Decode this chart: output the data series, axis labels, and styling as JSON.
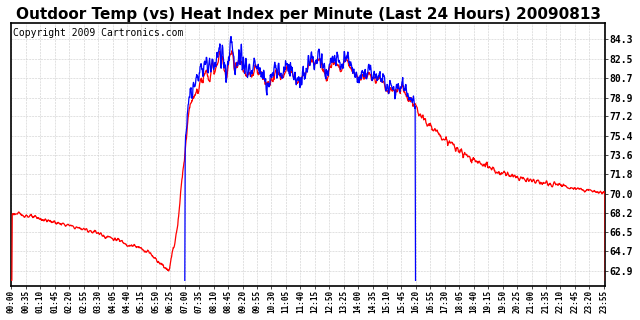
{
  "title": "Outdoor Temp (vs) Heat Index per Minute (Last 24 Hours) 20090813",
  "copyright": "Copyright 2009 Cartronics.com",
  "yticks": [
    62.9,
    64.7,
    66.5,
    68.2,
    70.0,
    71.8,
    73.6,
    75.4,
    77.2,
    78.9,
    80.7,
    82.5,
    84.3
  ],
  "ylim": [
    61.5,
    85.8
  ],
  "xlim": [
    0,
    1439
  ],
  "xtick_minutes": [
    0,
    35,
    70,
    105,
    140,
    175,
    210,
    245,
    280,
    315,
    350,
    385,
    420,
    455,
    490,
    525,
    560,
    595,
    630,
    665,
    700,
    735,
    770,
    805,
    840,
    875,
    910,
    945,
    980,
    1015,
    1050,
    1085,
    1120,
    1155,
    1190,
    1225,
    1260,
    1295,
    1330,
    1365,
    1400,
    1435
  ],
  "xtick_labels": [
    "00:00",
    "00:35",
    "01:10",
    "01:45",
    "02:20",
    "02:55",
    "03:30",
    "04:05",
    "04:40",
    "05:15",
    "05:50",
    "06:25",
    "07:00",
    "07:35",
    "08:10",
    "08:45",
    "09:20",
    "09:55",
    "10:30",
    "11:05",
    "11:40",
    "12:15",
    "12:50",
    "13:25",
    "14:00",
    "14:35",
    "15:10",
    "15:45",
    "16:20",
    "16:55",
    "17:30",
    "18:05",
    "18:40",
    "19:15",
    "19:50",
    "20:25",
    "21:00",
    "21:35",
    "22:10",
    "22:45",
    "23:20",
    "23:55"
  ],
  "line_red_color": "#ff0000",
  "line_blue_color": "#0000ff",
  "background_color": "#ffffff",
  "grid_color": "#cccccc",
  "title_fontsize": 11,
  "copyright_fontsize": 7,
  "blue_start": 420,
  "blue_end": 980
}
